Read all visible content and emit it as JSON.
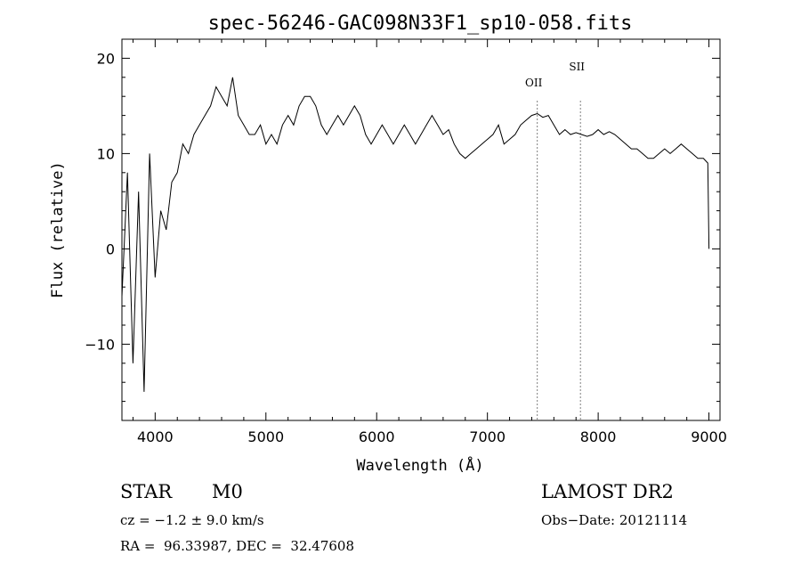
{
  "chart_data": {
    "type": "line",
    "title": "spec-56246-GAC098N33F1_sp10-058.fits",
    "xlabel": "Wavelength (Å)",
    "ylabel": "Flux (relative)",
    "xlim": [
      3700,
      9100
    ],
    "ylim": [
      -18,
      22
    ],
    "xticks": [
      4000,
      5000,
      6000,
      7000,
      8000,
      9000
    ],
    "xtick_labels": [
      "4000",
      "5000",
      "6000",
      "7000",
      "8000",
      "9000"
    ],
    "yticks": [
      -10,
      0,
      10,
      20
    ],
    "ytick_labels": [
      "−10",
      "0",
      "10",
      "20"
    ],
    "grid": false,
    "lines": [
      {
        "label": "OII",
        "x": 7450
      },
      {
        "label": "SII",
        "x": 7840
      }
    ],
    "series": [
      {
        "color": "#000000",
        "x": [
          3700,
          3750,
          3800,
          3850,
          3900,
          3950,
          4000,
          4050,
          4100,
          4150,
          4200,
          4250,
          4300,
          4350,
          4400,
          4450,
          4500,
          4550,
          4600,
          4650,
          4700,
          4750,
          4800,
          4850,
          4900,
          4950,
          5000,
          5050,
          5100,
          5150,
          5200,
          5250,
          5300,
          5350,
          5400,
          5450,
          5500,
          5550,
          5600,
          5650,
          5700,
          5750,
          5800,
          5850,
          5900,
          5950,
          6000,
          6050,
          6100,
          6150,
          6200,
          6250,
          6300,
          6350,
          6400,
          6450,
          6500,
          6550,
          6600,
          6650,
          6700,
          6750,
          6800,
          6850,
          6900,
          6950,
          7000,
          7050,
          7100,
          7150,
          7200,
          7250,
          7300,
          7350,
          7400,
          7450,
          7500,
          7550,
          7600,
          7650,
          7700,
          7750,
          7800,
          7850,
          7900,
          7950,
          8000,
          8050,
          8100,
          8150,
          8200,
          8250,
          8300,
          8350,
          8400,
          8450,
          8500,
          8550,
          8600,
          8650,
          8700,
          8750,
          8800,
          8850,
          8900,
          8950,
          8990,
          9000
        ],
        "y": [
          -5,
          8,
          -12,
          6,
          -15,
          10,
          -3,
          4,
          2,
          7,
          8,
          11,
          10,
          12,
          13,
          14,
          15,
          17,
          16,
          15,
          18,
          14,
          13,
          12,
          12,
          13,
          11,
          12,
          11,
          13,
          14,
          13,
          15,
          16,
          16,
          15,
          13,
          12,
          13,
          14,
          13,
          14,
          15,
          14,
          12,
          11,
          12,
          13,
          12,
          11,
          12,
          13,
          12,
          11,
          12,
          13,
          14,
          13,
          12,
          12.5,
          11,
          10,
          9.5,
          10,
          10.5,
          11,
          11.5,
          12,
          13,
          11,
          11.5,
          12,
          13,
          13.5,
          14,
          14.2,
          13.8,
          14,
          13,
          12,
          12.5,
          12,
          12.2,
          12,
          11.8,
          12,
          12.5,
          12,
          12.3,
          12,
          11.5,
          11,
          10.5,
          10.5,
          10,
          9.5,
          9.5,
          10,
          10.5,
          10,
          10.5,
          11,
          10.5,
          10,
          9.5,
          9.5,
          9,
          0
        ]
      }
    ]
  },
  "info": {
    "object_class": "STAR",
    "subclass": "M0",
    "cz_line": "cz = −1.2 ± 9.0 km/s",
    "radec_line": "RA =  96.33987, DEC =  32.47608",
    "survey": "LAMOST DR2",
    "obs_date_line": "Obs−Date: 20121114"
  }
}
